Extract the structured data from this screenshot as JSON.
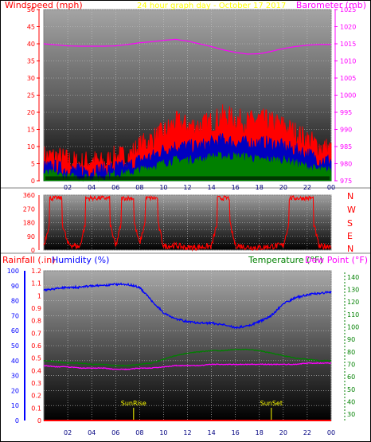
{
  "colors": {
    "wind": "#ff0000",
    "gust": "#ff0000",
    "avg_wind": "#0000c0",
    "min_wind": "#008000",
    "baro": "#ff00ff",
    "direction": "#ff0000",
    "humidity": "#0000ff",
    "temperature": "#008000",
    "dewpoint": "#ff00ff",
    "rain": "#ff0000",
    "title": "#ffff00",
    "sun": "#ffff00",
    "green_axis": "#008000",
    "blue_axis": "#0000ff"
  },
  "chart_data": [
    {
      "type": "line",
      "title": "24 hour graph day - October 17 2017",
      "left_label": "Windspeed (mph)",
      "right_label": "Barometer (mb)",
      "x_ticks": [
        "02",
        "04",
        "06",
        "08",
        "10",
        "12",
        "14",
        "16",
        "18",
        "20",
        "22",
        "00"
      ],
      "y_left_ticks": [
        "0",
        "5",
        "10",
        "15",
        "20",
        "25",
        "30",
        "35",
        "40",
        "45",
        "50"
      ],
      "y_left_range": [
        0,
        50
      ],
      "y_right_ticks": [
        "975",
        "980",
        "985",
        "990",
        "995",
        "1000",
        "1005",
        "1010",
        "1015",
        "1020",
        "1025"
      ],
      "y_right_range": [
        975,
        1025
      ],
      "grid": true,
      "series": [
        {
          "name": "gust",
          "x": [
            0,
            1,
            2,
            3,
            4,
            5,
            6,
            7,
            8,
            9,
            10,
            11,
            12,
            13,
            14,
            15,
            16,
            17,
            18,
            19,
            20,
            21,
            22,
            23,
            24
          ],
          "values": [
            7,
            7,
            6,
            5,
            6,
            5,
            7,
            7,
            10,
            12,
            14,
            17,
            16,
            16,
            17,
            19,
            18,
            17,
            18,
            17,
            16,
            14,
            12,
            10,
            9
          ]
        },
        {
          "name": "average",
          "x": [
            0,
            1,
            2,
            3,
            4,
            5,
            6,
            7,
            8,
            9,
            10,
            11,
            12,
            13,
            14,
            15,
            16,
            17,
            18,
            19,
            20,
            21,
            22,
            23,
            24
          ],
          "values": [
            4,
            4,
            3,
            3,
            3,
            3,
            4,
            4,
            6,
            7,
            9,
            10,
            10,
            10,
            11,
            12,
            11,
            11,
            11,
            11,
            10,
            9,
            8,
            6,
            6
          ]
        },
        {
          "name": "low",
          "x": [
            0,
            1,
            2,
            3,
            4,
            5,
            6,
            7,
            8,
            9,
            10,
            11,
            12,
            13,
            14,
            15,
            16,
            17,
            18,
            19,
            20,
            21,
            22,
            23,
            24
          ],
          "values": [
            2,
            2,
            1,
            1,
            1,
            1,
            2,
            2,
            3,
            4,
            5,
            6,
            6,
            6,
            7,
            7,
            7,
            7,
            6,
            6,
            6,
            5,
            4,
            3,
            3
          ]
        },
        {
          "name": "barometer",
          "x": [
            0,
            1,
            2,
            3,
            4,
            5,
            6,
            7,
            8,
            9,
            10,
            11,
            12,
            13,
            14,
            15,
            16,
            17,
            18,
            19,
            20,
            21,
            22,
            23,
            24
          ],
          "values": [
            1015,
            1014.7,
            1014.4,
            1014.3,
            1014.3,
            1014.3,
            1014.4,
            1014.8,
            1015.3,
            1015.6,
            1016,
            1016.3,
            1015.8,
            1015,
            1014.2,
            1013.2,
            1012.5,
            1012,
            1012.1,
            1012.8,
            1013.6,
            1014.2,
            1014.6,
            1014.8,
            1014.8
          ]
        }
      ]
    },
    {
      "type": "line",
      "title": "",
      "y_ticks": [
        "0",
        "45",
        "90",
        "135",
        "180",
        "225",
        "270",
        "315",
        "360"
      ],
      "y_range": [
        0,
        360
      ],
      "right_labels": [
        "N",
        "W",
        "S",
        "E",
        "N"
      ],
      "grid": true,
      "series": [
        {
          "name": "direction",
          "x": [
            0,
            1,
            2,
            3,
            4,
            5,
            6,
            7,
            8,
            9,
            10,
            11,
            12,
            13,
            14,
            15,
            16,
            17,
            18,
            19,
            20,
            21,
            22,
            23,
            24
          ],
          "values": [
            30,
            340,
            40,
            20,
            345,
            350,
            20,
            350,
            40,
            345,
            25,
            30,
            15,
            20,
            25,
            340,
            30,
            20,
            15,
            25,
            30,
            345,
            350,
            20,
            30
          ]
        }
      ]
    },
    {
      "type": "line",
      "left_label": "Rainfall (.in)",
      "left2_label": "Humidity (%)",
      "right_label": "Temperature (°F)",
      "right2_label": "Dew Point (°F)",
      "x_ticks": [
        "02",
        "04",
        "06",
        "08",
        "10",
        "12",
        "14",
        "16",
        "18",
        "20",
        "22",
        "00"
      ],
      "y_rain_ticks": [
        "0",
        "0.1",
        "0.2",
        "0.3",
        "0.4",
        "0.5",
        "0.6",
        "0.7",
        "0.8",
        "0.9",
        "1",
        "1.1",
        "1.2"
      ],
      "y_rain_range": [
        0,
        1.2
      ],
      "y_hum_ticks": [
        "0",
        "10",
        "20",
        "30",
        "40",
        "50",
        "60",
        "70",
        "80",
        "90",
        "100"
      ],
      "y_hum_range": [
        0,
        100
      ],
      "y_temp_ticks": [
        "30",
        "40",
        "50",
        "60",
        "70",
        "80",
        "90",
        "100",
        "110",
        "120",
        "130",
        "140"
      ],
      "y_temp_range": [
        25,
        145
      ],
      "grid": true,
      "annotations": [
        {
          "label": "SunRise",
          "x": 7.5
        },
        {
          "label": "SunSet",
          "x": 19.0
        }
      ],
      "series": [
        {
          "name": "humidity",
          "x": [
            0,
            1,
            2,
            3,
            4,
            5,
            6,
            7,
            8,
            9,
            10,
            11,
            12,
            13,
            14,
            15,
            16,
            17,
            18,
            19,
            20,
            21,
            22,
            23,
            24
          ],
          "values": [
            87,
            88,
            89,
            89,
            90,
            90,
            91,
            91,
            89,
            80,
            72,
            68,
            66,
            65,
            65,
            64,
            62,
            63,
            66,
            70,
            78,
            82,
            84,
            85,
            86
          ]
        },
        {
          "name": "temperature",
          "x": [
            0,
            1,
            2,
            3,
            4,
            5,
            6,
            7,
            8,
            9,
            10,
            11,
            12,
            13,
            14,
            15,
            16,
            17,
            18,
            19,
            20,
            21,
            22,
            23,
            24
          ],
          "values": [
            73,
            72,
            71,
            71,
            70,
            70,
            69,
            69,
            70,
            71,
            74,
            77,
            79,
            80,
            81,
            81,
            82,
            82,
            81,
            79,
            77,
            75,
            74,
            73,
            73
          ]
        },
        {
          "name": "dewpoint",
          "x": [
            0,
            1,
            2,
            3,
            4,
            5,
            6,
            7,
            8,
            9,
            10,
            11,
            12,
            13,
            14,
            15,
            16,
            17,
            18,
            19,
            20,
            21,
            22,
            23,
            24
          ],
          "values": [
            69,
            68,
            68,
            67,
            67,
            67,
            66,
            66,
            67,
            67,
            68,
            69,
            69,
            69,
            70,
            70,
            70,
            70,
            70,
            70,
            70,
            70,
            71,
            71,
            71
          ]
        },
        {
          "name": "rainfall",
          "x": [
            0,
            24
          ],
          "values": [
            0,
            0
          ]
        }
      ]
    }
  ]
}
